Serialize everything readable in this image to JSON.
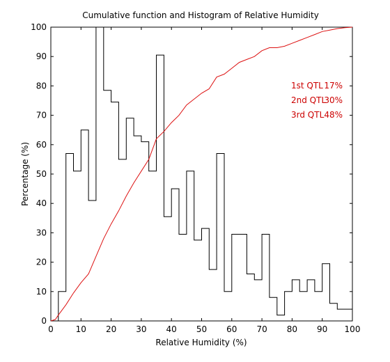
{
  "chart_data": {
    "type": "line",
    "title": "Cumulative function and Histogram of Relative Humidity",
    "xlabel": "Relative Humidity (%)",
    "ylabel": "Percentage (%)",
    "xlim": [
      0,
      100
    ],
    "ylim": [
      0,
      100
    ],
    "xticks": [
      "0",
      "10",
      "20",
      "30",
      "40",
      "50",
      "60",
      "70",
      "80",
      "90",
      "100"
    ],
    "yticks": [
      "0",
      "10",
      "20",
      "30",
      "40",
      "50",
      "60",
      "70",
      "80",
      "90",
      "100"
    ],
    "grid": false,
    "legend": "none",
    "series": [
      {
        "kind": "stairs",
        "color": "#000000",
        "bin_width": 2.5,
        "bin_start": 0,
        "values": [
          0,
          10,
          57,
          51,
          65,
          41,
          100,
          78.5,
          74.5,
          55,
          69,
          63,
          61,
          51,
          90.5,
          35.5,
          45,
          29.5,
          51,
          27.5,
          31.5,
          17.5,
          57,
          10,
          29.5,
          29.5,
          16,
          14,
          29.5,
          8,
          2,
          10,
          14,
          10,
          14,
          10,
          19.5,
          6,
          4,
          4
        ]
      },
      {
        "kind": "line",
        "color": "#dd1111",
        "x": [
          0,
          1.5,
          2.5,
          5,
          7.5,
          10,
          12.5,
          15,
          17.5,
          20,
          22.5,
          25,
          27.5,
          30,
          32.5,
          35,
          37.5,
          40,
          42.5,
          45,
          47.5,
          50,
          52.5,
          55,
          57.5,
          60,
          62.5,
          65,
          67.5,
          70,
          72.5,
          75,
          77.5,
          80,
          82.5,
          85,
          87.5,
          90,
          92.5,
          95,
          97.5,
          100
        ],
        "y": [
          0,
          0.5,
          2,
          5.5,
          9.5,
          13,
          16,
          22,
          28,
          33,
          37.5,
          42.5,
          47,
          51,
          55,
          62,
          64.5,
          67.5,
          70,
          73.5,
          75.5,
          77.5,
          79,
          83,
          84,
          86,
          88,
          89,
          90,
          92,
          93,
          93,
          93.5,
          94.5,
          95.5,
          96.5,
          97.5,
          98.5,
          99,
          99.5,
          99.8,
          100
        ]
      }
    ],
    "annotations": [
      {
        "label": "1st QTL",
        "value": "17%"
      },
      {
        "label": "2nd QTL",
        "value": "30%"
      },
      {
        "label": "3rd QTL",
        "value": "48%"
      }
    ],
    "annotation_color": "#cc0000"
  }
}
